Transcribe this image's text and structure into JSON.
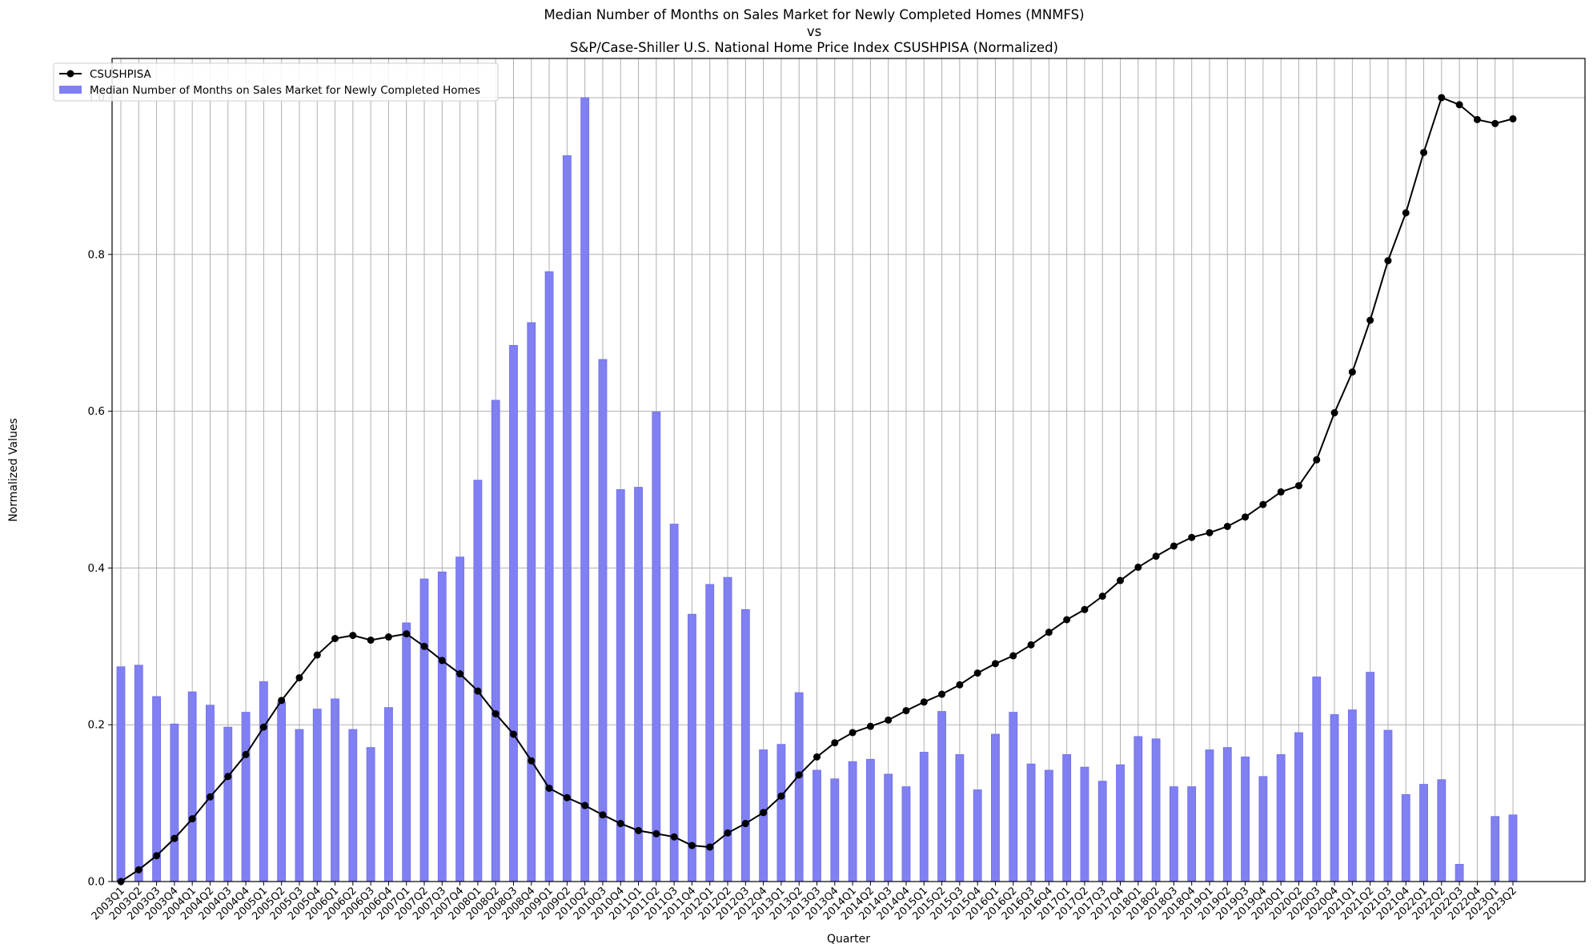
{
  "chart_data": {
    "type": "bar+line",
    "title_lines": [
      "Median Number of Months on Sales Market for Newly Completed Homes (MNMFS)",
      "vs",
      "S&P/Case-Shiller U.S. National Home Price Index CSUSHPISA (Normalized)"
    ],
    "xlabel": "Quarter",
    "ylabel": "Normalized Values",
    "ylim": [
      0,
      1.05
    ],
    "yticks": [
      "0.0",
      "0.2",
      "0.4",
      "0.6",
      "0.8",
      "1.0"
    ],
    "grid": true,
    "legend_position": "top-left",
    "categories": [
      "2003Q1",
      "2003Q2",
      "2003Q3",
      "2003Q4",
      "2004Q1",
      "2004Q2",
      "2004Q3",
      "2004Q4",
      "2005Q1",
      "2005Q2",
      "2005Q3",
      "2005Q4",
      "2006Q1",
      "2006Q2",
      "2006Q3",
      "2006Q4",
      "2007Q1",
      "2007Q2",
      "2007Q3",
      "2007Q4",
      "2008Q1",
      "2008Q2",
      "2008Q3",
      "2008Q4",
      "2009Q1",
      "2009Q2",
      "2010Q2",
      "2010Q3",
      "2010Q4",
      "2011Q1",
      "2011Q2",
      "2011Q3",
      "2011Q4",
      "2012Q1",
      "2012Q2",
      "2012Q3",
      "2012Q4",
      "2013Q1",
      "2013Q2",
      "2013Q3",
      "2013Q4",
      "2014Q1",
      "2014Q2",
      "2014Q3",
      "2014Q4",
      "2015Q1",
      "2015Q2",
      "2015Q3",
      "2015Q4",
      "2016Q1",
      "2016Q2",
      "2016Q3",
      "2016Q4",
      "2017Q1",
      "2017Q2",
      "2017Q3",
      "2017Q4",
      "2018Q1",
      "2018Q2",
      "2018Q3",
      "2018Q4",
      "2019Q1",
      "2019Q2",
      "2019Q3",
      "2019Q4",
      "2020Q1",
      "2020Q2",
      "2020Q3",
      "2020Q4",
      "2021Q1",
      "2021Q2",
      "2021Q3",
      "2021Q4",
      "2022Q1",
      "2022Q2",
      "2022Q3",
      "2022Q4",
      "2023Q1",
      "2023Q2"
    ],
    "series": [
      {
        "name": "CSUSHPISA",
        "kind": "line",
        "color": "#000000",
        "values": [
          0.0,
          0.015,
          0.033,
          0.055,
          0.08,
          0.108,
          0.134,
          0.162,
          0.197,
          0.231,
          0.26,
          0.289,
          0.31,
          0.314,
          0.308,
          0.312,
          0.316,
          0.3,
          0.282,
          0.265,
          0.243,
          0.214,
          0.188,
          0.154,
          0.119,
          0.107,
          0.097,
          0.085,
          0.074,
          0.065,
          0.061,
          0.057,
          0.046,
          0.044,
          0.062,
          0.074,
          0.088,
          0.109,
          0.136,
          0.159,
          0.177,
          0.19,
          0.198,
          0.206,
          0.218,
          0.229,
          0.239,
          0.251,
          0.266,
          0.278,
          0.288,
          0.302,
          0.318,
          0.334,
          0.347,
          0.364,
          0.384,
          0.401,
          0.415,
          0.428,
          0.439,
          0.445,
          0.453,
          0.465,
          0.481,
          0.497,
          0.505,
          0.538,
          0.598,
          0.65,
          0.716,
          0.792,
          0.853,
          0.93,
          1.0,
          0.991,
          0.972,
          0.967,
          0.973
        ]
      },
      {
        "name": "Median Number of Months on Sales Market for Newly Completed Homes",
        "kind": "bar",
        "color": "#8080f2",
        "edge": "#7070e6",
        "values": [
          0.274,
          0.276,
          0.236,
          0.201,
          0.242,
          0.225,
          0.197,
          0.216,
          0.255,
          0.229,
          0.194,
          0.22,
          0.233,
          0.194,
          0.171,
          0.222,
          0.33,
          0.386,
          0.395,
          0.414,
          0.512,
          0.614,
          0.684,
          0.713,
          0.778,
          0.926,
          1.0,
          0.666,
          0.5,
          0.503,
          0.599,
          0.456,
          0.341,
          0.379,
          0.388,
          0.347,
          0.168,
          0.175,
          0.241,
          0.142,
          0.131,
          0.153,
          0.156,
          0.137,
          0.121,
          0.165,
          0.217,
          0.162,
          0.117,
          0.188,
          0.216,
          0.15,
          0.142,
          0.162,
          0.146,
          0.128,
          0.149,
          0.185,
          0.182,
          0.121,
          0.121,
          0.168,
          0.171,
          0.159,
          0.134,
          0.162,
          0.19,
          0.261,
          0.213,
          0.219,
          0.267,
          0.193,
          0.111,
          0.124,
          0.13,
          0.022,
          null,
          0.083,
          0.085
        ]
      }
    ]
  }
}
